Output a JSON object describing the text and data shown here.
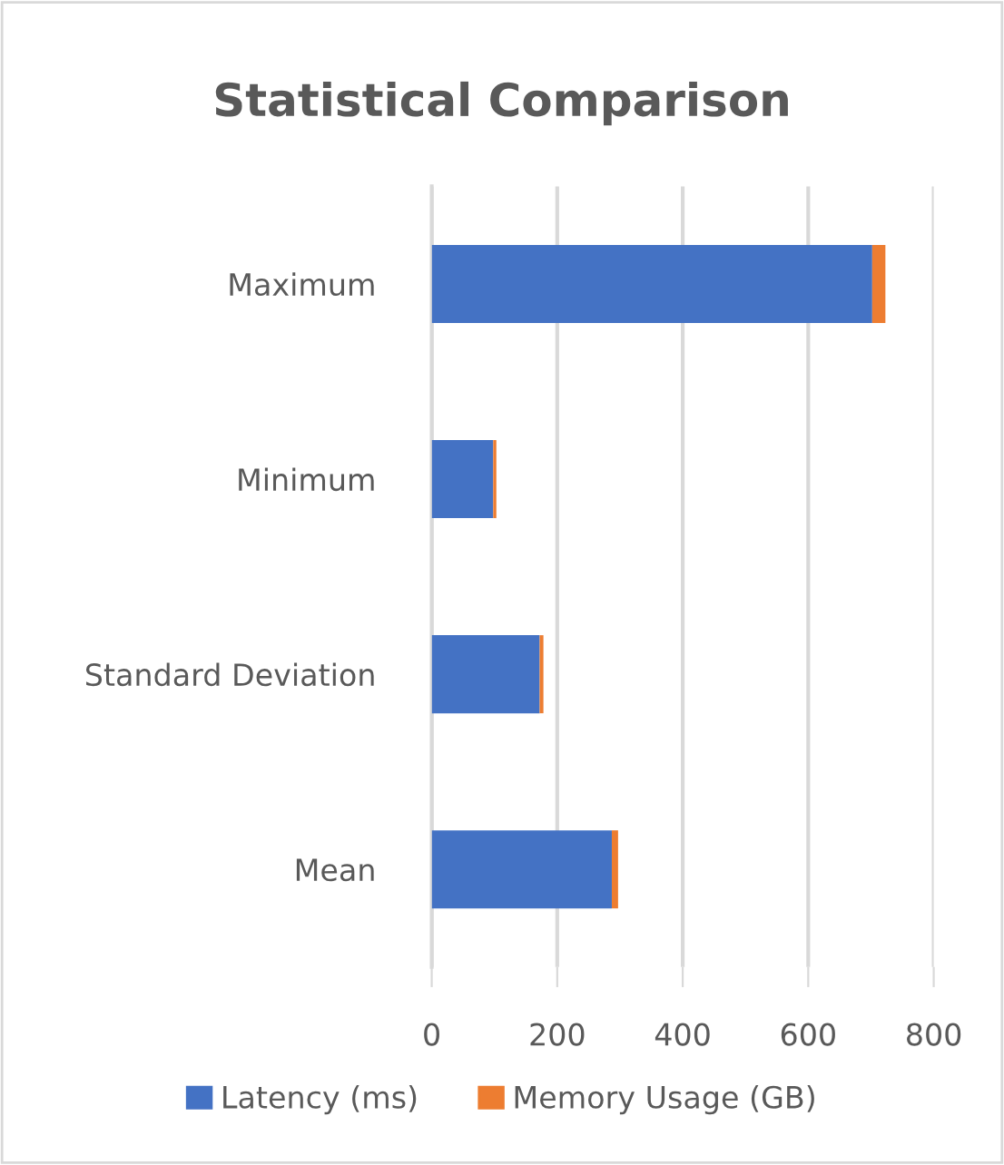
{
  "chart_data": {
    "type": "bar",
    "orientation": "horizontal",
    "stacked": true,
    "title": "Statistical Comparison",
    "categories": [
      "Maximum",
      "Minimum",
      "Standard Deviation",
      "Mean"
    ],
    "series": [
      {
        "name": "Latency (ms)",
        "color": "#4472c4",
        "values": [
          702,
          98,
          172,
          287
        ]
      },
      {
        "name": "Memory Usage (GB)",
        "color": "#ed7d31",
        "values": [
          21,
          5,
          6,
          10
        ]
      }
    ],
    "xlim": [
      0,
      800
    ],
    "xticks": [
      0,
      200,
      400,
      600,
      800
    ],
    "grid": "x",
    "legend": "bottom"
  }
}
